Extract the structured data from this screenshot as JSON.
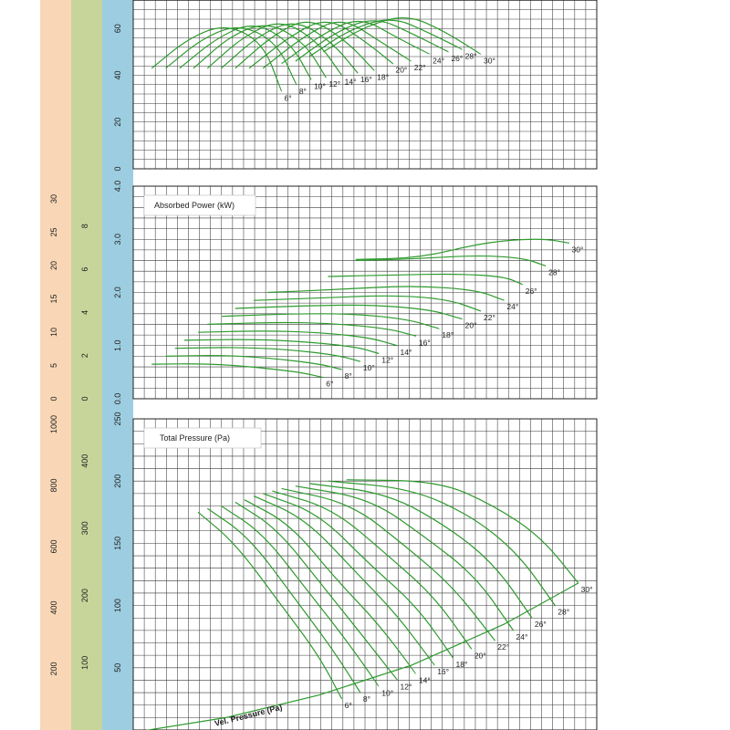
{
  "colors": {
    "strip_velocity": "#f9d7b6",
    "strip_flow_l": "#c7d59b",
    "strip_main": "#9dcde0",
    "grid": "#3a3a3a",
    "curve": "#2e9a2e",
    "background": "#ffffff"
  },
  "chart_data": [
    {
      "id": "efficiency",
      "type": "line",
      "title": "",
      "y_ticks": [
        "0",
        "20",
        "40",
        "60"
      ],
      "ylim": [
        0,
        80
      ],
      "grid": true,
      "x_ticks": [],
      "angle_labels": [
        "6°",
        "8°",
        "10°",
        "12°",
        "14°",
        "16°",
        "18°",
        "20°",
        "22°",
        "24°",
        "26°",
        "28°",
        "30°"
      ],
      "series": [
        {
          "name": "6°",
          "x": [
            20,
            60,
            100,
            140,
            160
          ],
          "y": [
            43,
            56,
            62,
            54,
            33
          ]
        },
        {
          "name": "8°",
          "x": [
            35,
            75,
            115,
            155,
            176
          ],
          "y": [
            43,
            56,
            62,
            54,
            36
          ]
        },
        {
          "name": "10°",
          "x": [
            50,
            90,
            130,
            170,
            192
          ],
          "y": [
            43,
            56,
            63,
            54,
            38
          ]
        },
        {
          "name": "12°",
          "x": [
            65,
            105,
            145,
            185,
            208
          ],
          "y": [
            43,
            57,
            63,
            54,
            39
          ]
        },
        {
          "name": "14°",
          "x": [
            80,
            120,
            160,
            200,
            225
          ],
          "y": [
            43,
            57,
            64,
            54,
            40
          ]
        },
        {
          "name": "16°",
          "x": [
            95,
            135,
            175,
            215,
            242
          ],
          "y": [
            43,
            57,
            64,
            54,
            41
          ]
        },
        {
          "name": "18°",
          "x": [
            110,
            150,
            190,
            232,
            260
          ],
          "y": [
            43,
            57,
            65,
            54,
            42
          ]
        },
        {
          "name": "20°",
          "x": [
            125,
            170,
            210,
            252,
            280
          ],
          "y": [
            43,
            57,
            65,
            54,
            45
          ]
        },
        {
          "name": "22°",
          "x": [
            140,
            185,
            225,
            268,
            300
          ],
          "y": [
            43,
            57,
            65,
            54,
            46
          ]
        },
        {
          "name": "24°",
          "x": [
            160,
            205,
            245,
            285,
            320
          ],
          "y": [
            45,
            58,
            65,
            56,
            49
          ]
        },
        {
          "name": "26°",
          "x": [
            175,
            220,
            262,
            305,
            340
          ],
          "y": [
            46,
            59,
            65,
            57,
            50
          ]
        },
        {
          "name": "28°",
          "x": [
            190,
            235,
            280,
            320,
            355
          ],
          "y": [
            48,
            60,
            65,
            58,
            51
          ]
        },
        {
          "name": "30°",
          "x": [
            205,
            250,
            295,
            335,
            375
          ],
          "y": [
            50,
            61,
            66,
            59,
            49
          ]
        }
      ]
    },
    {
      "id": "absorbed_power",
      "type": "line",
      "title": "Absorbed Power (kW)",
      "y_ticks": [
        "0.0",
        "1.0",
        "2.0",
        "3.0",
        "4.0"
      ],
      "ylim": [
        0,
        4
      ],
      "grid": true,
      "left_axes": [
        {
          "ticks": [
            "0",
            "5",
            "10",
            "15",
            "20",
            "25",
            "30"
          ]
        },
        {
          "ticks": [
            "0",
            "2",
            "4",
            "6",
            "8"
          ]
        }
      ],
      "angle_labels": [
        "6°",
        "8°",
        "10°",
        "12°",
        "14°",
        "16°",
        "18°",
        "20°",
        "22°",
        "24°",
        "26°",
        "28°",
        "30°"
      ],
      "series": [
        {
          "name": "6°",
          "x": [
            20,
            80,
            130,
            180,
            205
          ],
          "y": [
            0.65,
            0.66,
            0.6,
            0.5,
            0.4
          ]
        },
        {
          "name": "8°",
          "x": [
            35,
            95,
            145,
            200,
            225
          ],
          "y": [
            0.8,
            0.82,
            0.77,
            0.66,
            0.55
          ]
        },
        {
          "name": "10°",
          "x": [
            45,
            110,
            165,
            220,
            245
          ],
          "y": [
            0.95,
            0.97,
            0.93,
            0.82,
            0.7
          ]
        },
        {
          "name": "12°",
          "x": [
            55,
            125,
            180,
            240,
            265
          ],
          "y": [
            1.1,
            1.12,
            1.08,
            0.98,
            0.85
          ]
        },
        {
          "name": "14°",
          "x": [
            70,
            140,
            200,
            255,
            285
          ],
          "y": [
            1.25,
            1.28,
            1.25,
            1.15,
            1.0
          ]
        },
        {
          "name": "16°",
          "x": [
            80,
            155,
            215,
            275,
            305
          ],
          "y": [
            1.4,
            1.44,
            1.42,
            1.32,
            1.18
          ]
        },
        {
          "name": "18°",
          "x": [
            95,
            170,
            235,
            295,
            330
          ],
          "y": [
            1.55,
            1.6,
            1.6,
            1.5,
            1.32
          ]
        },
        {
          "name": "20°",
          "x": [
            110,
            185,
            255,
            320,
            355
          ],
          "y": [
            1.7,
            1.75,
            1.77,
            1.68,
            1.5
          ]
        },
        {
          "name": "22°",
          "x": [
            130,
            205,
            280,
            340,
            375
          ],
          "y": [
            1.85,
            1.9,
            1.95,
            1.87,
            1.65
          ]
        },
        {
          "name": "24°",
          "x": [
            145,
            225,
            300,
            370,
            400
          ],
          "y": [
            2.0,
            2.06,
            2.13,
            2.05,
            1.85
          ]
        },
        {
          "name": "26°",
          "x": [
            210,
            280,
            350,
            400,
            420
          ],
          "y": [
            2.3,
            2.33,
            2.35,
            2.3,
            2.15
          ]
        },
        {
          "name": "28°",
          "x": [
            240,
            300,
            370,
            420,
            445
          ],
          "y": [
            2.6,
            2.63,
            2.7,
            2.65,
            2.5
          ]
        },
        {
          "name": "30°",
          "x": [
            240,
            310,
            380,
            440,
            470
          ],
          "y": [
            2.62,
            2.65,
            2.95,
            3.02,
            2.93
          ]
        }
      ]
    },
    {
      "id": "total_pressure",
      "type": "line",
      "title": "Total Pressure (Pa)",
      "y_ticks": [
        "50",
        "100",
        "150",
        "200",
        "250"
      ],
      "ylim": [
        0,
        250
      ],
      "grid": true,
      "left_axes": [
        {
          "ticks": [
            "200",
            "400",
            "600",
            "800",
            "1000"
          ]
        },
        {
          "ticks": [
            "100",
            "200",
            "300",
            "400"
          ]
        }
      ],
      "angle_labels": [
        "6°",
        "8°",
        "10°",
        "12°",
        "14°",
        "16°",
        "18°",
        "20°",
        "22°",
        "24°",
        "26°",
        "28°",
        "30°"
      ],
      "series": [
        {
          "name": "6°",
          "x": [
            70,
            110,
            160,
            200,
            225
          ],
          "y": [
            175,
            150,
            100,
            60,
            25
          ]
        },
        {
          "name": "8°",
          "x": [
            80,
            125,
            175,
            215,
            245
          ],
          "y": [
            178,
            155,
            105,
            65,
            30
          ]
        },
        {
          "name": "10°",
          "x": [
            95,
            140,
            190,
            230,
            265
          ],
          "y": [
            180,
            158,
            110,
            72,
            35
          ]
        },
        {
          "name": "12°",
          "x": [
            110,
            155,
            205,
            245,
            285
          ],
          "y": [
            183,
            162,
            115,
            78,
            40
          ]
        },
        {
          "name": "14°",
          "x": [
            120,
            170,
            220,
            265,
            305
          ],
          "y": [
            185,
            165,
            120,
            85,
            45
          ]
        },
        {
          "name": "16°",
          "x": [
            130,
            185,
            240,
            285,
            325
          ],
          "y": [
            188,
            170,
            127,
            92,
            52
          ]
        },
        {
          "name": "18°",
          "x": [
            140,
            200,
            255,
            305,
            345
          ],
          "y": [
            190,
            174,
            133,
            100,
            58
          ]
        },
        {
          "name": "20°",
          "x": [
            150,
            215,
            275,
            325,
            365
          ],
          "y": [
            192,
            178,
            140,
            107,
            65
          ]
        },
        {
          "name": "22°",
          "x": [
            160,
            235,
            295,
            345,
            390
          ],
          "y": [
            194,
            182,
            147,
            115,
            72
          ]
        },
        {
          "name": "24°",
          "x": [
            175,
            255,
            315,
            370,
            410
          ],
          "y": [
            196,
            186,
            155,
            123,
            80
          ]
        },
        {
          "name": "26°",
          "x": [
            190,
            275,
            340,
            390,
            430
          ],
          "y": [
            198,
            190,
            163,
            133,
            90
          ]
        },
        {
          "name": "28°",
          "x": [
            210,
            300,
            365,
            415,
            455
          ],
          "y": [
            200,
            194,
            172,
            142,
            100
          ]
        },
        {
          "name": "30°",
          "x": [
            230,
            330,
            390,
            440,
            480
          ],
          "y": [
            201,
            200,
            180,
            155,
            118
          ]
        }
      ],
      "vel_pressure": {
        "label": "Vel. Pressure (Pa)",
        "x": [
          0,
          100,
          200,
          300,
          400,
          480
        ],
        "y": [
          -2,
          10,
          28,
          52,
          85,
          118
        ]
      }
    }
  ]
}
